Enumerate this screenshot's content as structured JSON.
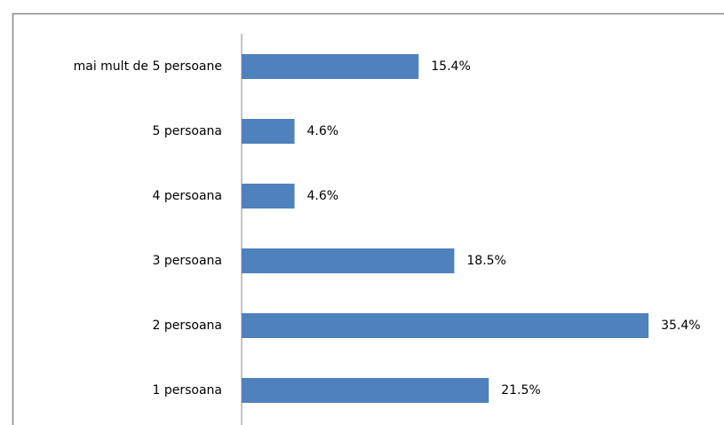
{
  "chart_data": {
    "type": "hbar",
    "categories": [
      "1 persoana",
      "2 persoana",
      "3 persoana",
      "4 persoana",
      "5 persoana",
      "mai mult de 5 persoane"
    ],
    "values": [
      21.5,
      35.4,
      18.5,
      4.6,
      4.6,
      15.4
    ],
    "value_labels": [
      "21.5%",
      "35.4%",
      "18.5%",
      "4.6%",
      "4.6%",
      "15.4%"
    ],
    "color": "#4f81bd"
  }
}
